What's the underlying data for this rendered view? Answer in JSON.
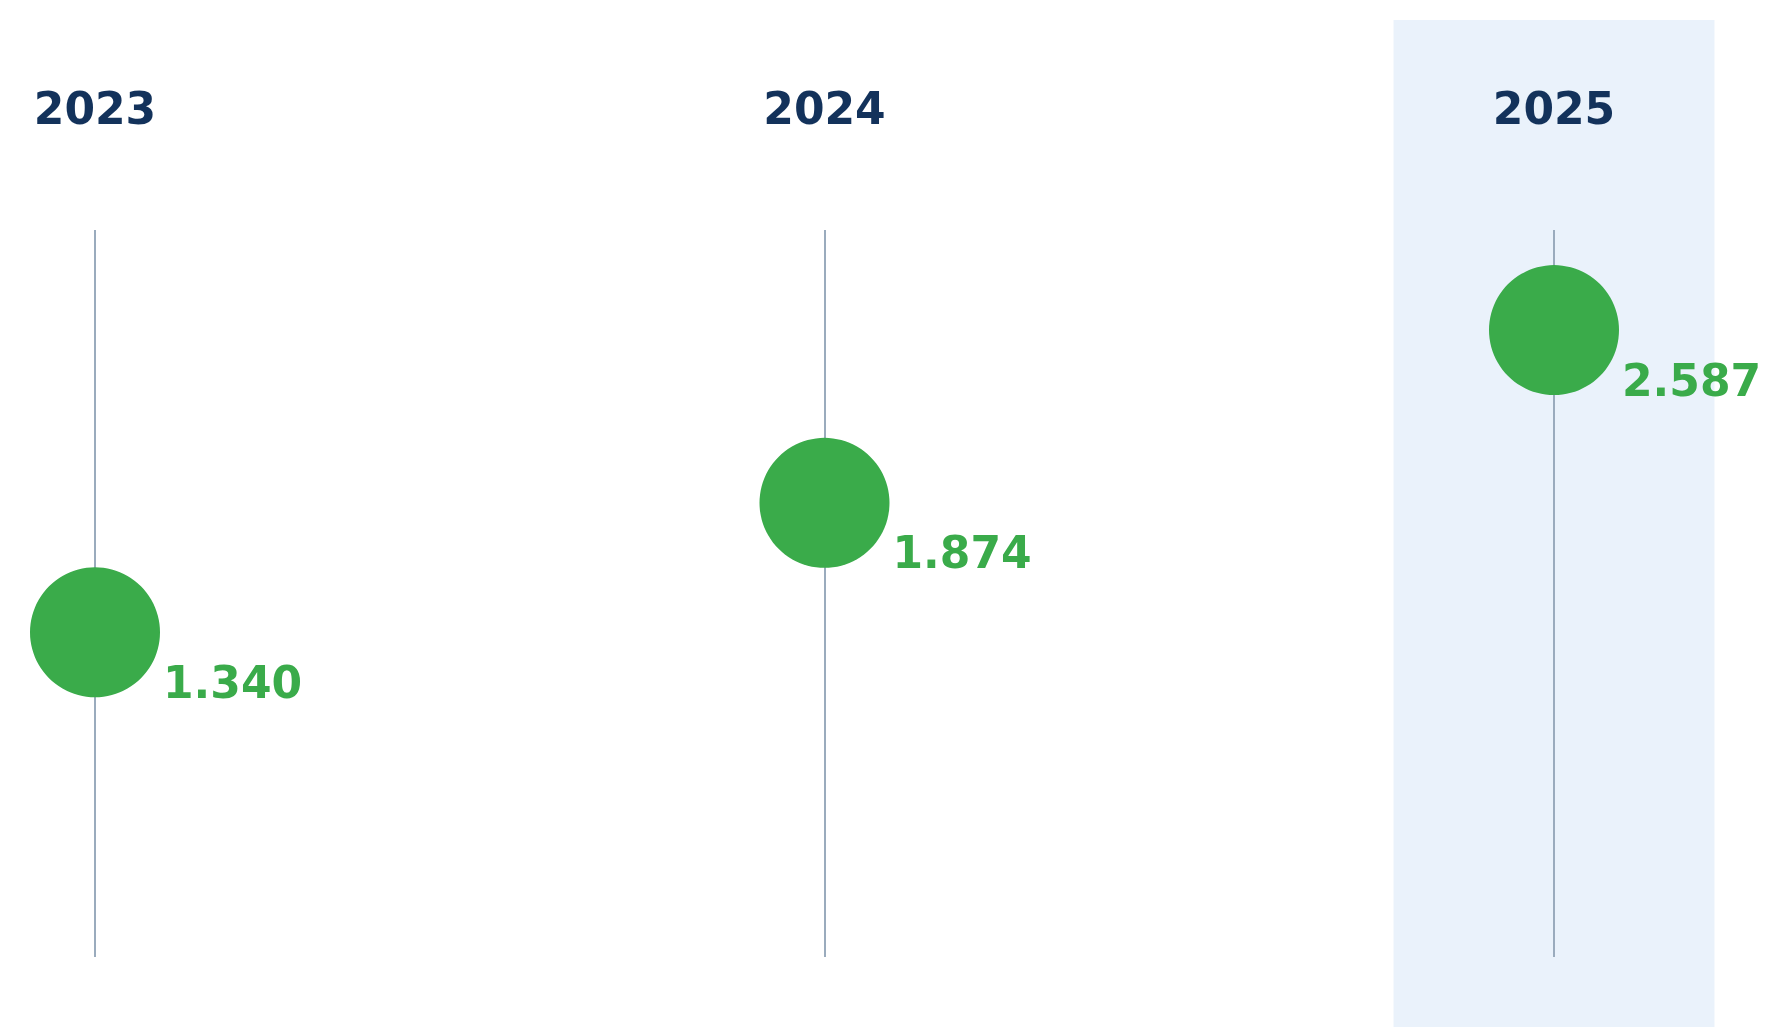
{
  "chart_data": {
    "type": "scatter",
    "categories": [
      "2023",
      "2024",
      "2025"
    ],
    "values": [
      1340,
      1874,
      2587
    ],
    "value_labels": [
      "1.340",
      "1.874",
      "2.587"
    ],
    "color": "#3aab4a",
    "marker": "circle",
    "grid": "x",
    "bands": [
      {
        "axis": "x",
        "from": "2025",
        "to": "2025",
        "color": "#eaf2fb"
      }
    ]
  }
}
